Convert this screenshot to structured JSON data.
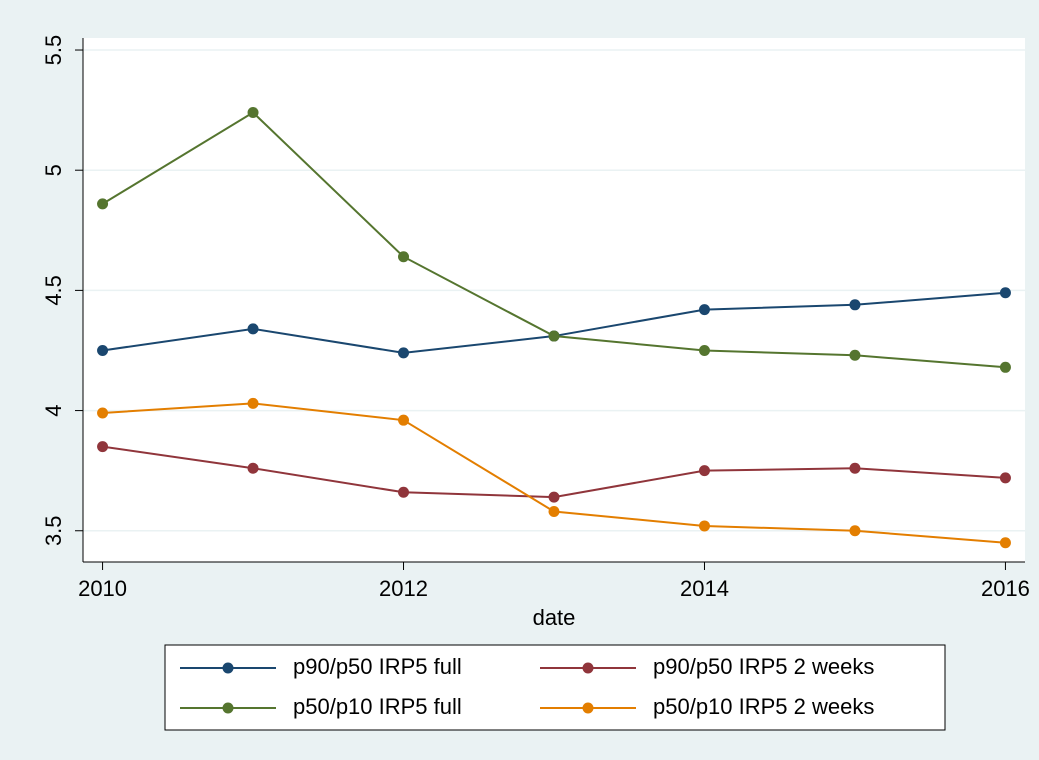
{
  "chart_data": {
    "type": "line",
    "x_label": "date",
    "x": [
      2010,
      2011,
      2012,
      2013,
      2014,
      2015,
      2016
    ],
    "series": [
      {
        "name": "p90/p50 IRP5 full",
        "color": "#1a476f",
        "values": [
          4.25,
          4.34,
          4.24,
          4.31,
          4.42,
          4.44,
          4.49
        ]
      },
      {
        "name": "p90/p50 IRP5 2 weeks",
        "color": "#90353b",
        "values": [
          3.85,
          3.76,
          3.66,
          3.64,
          3.75,
          3.76,
          3.72
        ]
      },
      {
        "name": "p50/p10 IRP5 full",
        "color": "#55752f",
        "values": [
          4.86,
          5.24,
          4.64,
          4.31,
          4.25,
          4.23,
          4.18
        ]
      },
      {
        "name": "p50/p10 IRP5 2 weeks",
        "color": "#e37e00",
        "values": [
          3.99,
          4.03,
          3.96,
          3.58,
          3.52,
          3.5,
          3.45
        ]
      }
    ],
    "xlim": [
      2009.87,
      2016.13
    ],
    "xticks": [
      2010,
      2012,
      2014,
      2016
    ],
    "ylim": [
      3.37,
      5.55
    ],
    "yticks": [
      3.5,
      4,
      4.5,
      5,
      5.5
    ],
    "grid": true,
    "legend": "bottom"
  }
}
